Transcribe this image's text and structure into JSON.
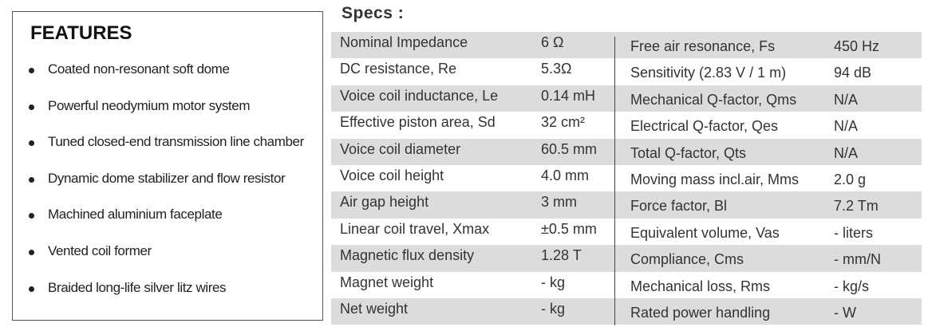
{
  "features": {
    "title": "FEATURES",
    "items": [
      "Coated non-resonant soft dome",
      "Powerful neodymium motor system",
      "Tuned closed-end transmission line chamber",
      "Dynamic dome stabilizer and flow resistor",
      "Machined aluminium faceplate",
      "Vented coil former",
      "Braided long-life silver litz wires"
    ]
  },
  "specs": {
    "title": "Specs :",
    "rows": [
      [
        "Nominal Impedance",
        "6 Ω",
        "Free air resonance, Fs",
        "450 Hz"
      ],
      [
        "DC resistance, Re",
        "5.3Ω",
        "Sensitivity (2.83 V / 1 m)",
        "94 dB"
      ],
      [
        "Voice coil inductance, Le",
        "0.14 mH",
        "Mechanical Q-factor, Qms",
        "N/A"
      ],
      [
        "Effective piston area, Sd",
        "32 cm²",
        "Electrical Q-factor, Qes",
        "N/A"
      ],
      [
        "Voice coil diameter",
        "60.5 mm",
        "Total Q-factor, Qts",
        "N/A"
      ],
      [
        "Voice coil height",
        "4.0 mm",
        "Moving mass incl.air, Mms",
        "2.0 g"
      ],
      [
        "Air gap height",
        "3 mm",
        "Force factor, Bl",
        "7.2 Tm"
      ],
      [
        "Linear coil travel, Xmax",
        "±0.5 mm",
        "Equivalent volume, Vas",
        "- liters"
      ],
      [
        "Magnetic flux density",
        "1.28 T",
        "Compliance, Cms",
        "- mm/N"
      ],
      [
        "Magnet weight",
        "- kg",
        "Mechanical loss, Rms",
        "- kg/s"
      ],
      [
        "Net weight",
        "- kg",
        "Rated power handling",
        "- W"
      ]
    ]
  }
}
